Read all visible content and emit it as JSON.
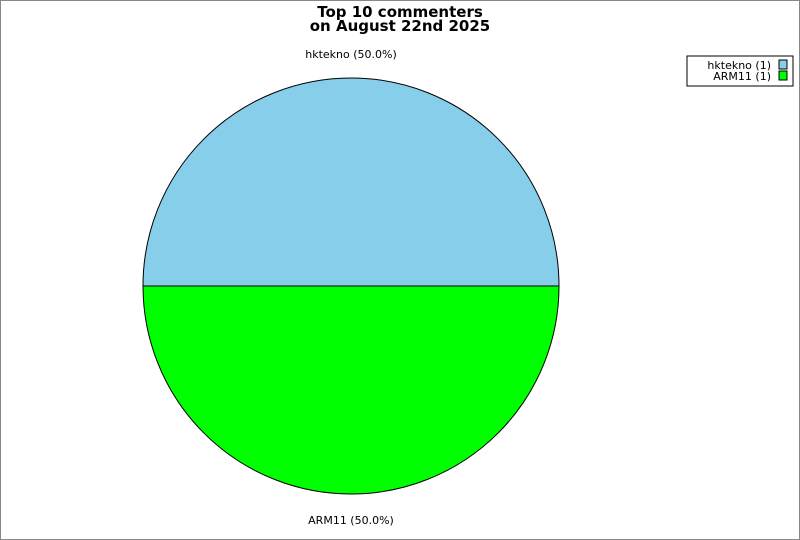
{
  "chart_data": {
    "type": "pie",
    "title_lines": [
      "Top 10 commenters",
      "on August 22nd 2025"
    ],
    "slices": [
      {
        "name": "hktekno",
        "value": 1,
        "label": "hktekno (50.0%)",
        "legend": "hktekno (1)",
        "color": "#87CEEB"
      },
      {
        "name": "ARM11",
        "value": 1,
        "label": "ARM11 (50.0%)",
        "legend": "ARM11 (1)",
        "color": "#00FF00"
      }
    ],
    "legend_position": "top-right"
  }
}
